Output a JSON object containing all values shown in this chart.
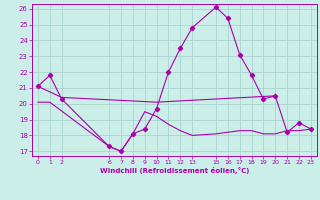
{
  "xlabel": "Windchill (Refroidissement éolien,°C)",
  "bg_color": "#cceee8",
  "grid_color": "#aad4ce",
  "line_color": "#aa00aa",
  "series1_x": [
    0,
    1,
    2,
    6,
    7,
    8,
    9,
    10,
    11,
    12,
    13,
    15,
    16,
    17,
    18,
    19,
    20,
    21,
    22,
    23
  ],
  "series1_y": [
    21.1,
    21.8,
    20.3,
    17.3,
    17.0,
    18.1,
    18.4,
    19.7,
    22.0,
    23.5,
    24.8,
    26.1,
    25.4,
    23.1,
    21.8,
    20.3,
    20.5,
    18.2,
    18.8,
    18.4
  ],
  "series2_x": [
    0,
    2,
    10,
    20
  ],
  "series2_y": [
    21.1,
    20.4,
    20.1,
    20.5
  ],
  "series3_x": [
    0,
    1,
    6,
    7,
    8,
    9,
    10,
    11,
    12,
    13,
    15,
    16,
    17,
    18,
    19,
    20,
    21,
    22,
    23
  ],
  "series3_y": [
    20.1,
    20.1,
    17.3,
    17.0,
    18.1,
    19.5,
    19.2,
    18.7,
    18.3,
    18.0,
    18.1,
    18.2,
    18.3,
    18.3,
    18.1,
    18.1,
    18.3,
    18.3,
    18.4
  ],
  "ylim": [
    16.7,
    26.3
  ],
  "xlim": [
    -0.5,
    23.5
  ],
  "yticks": [
    17,
    18,
    19,
    20,
    21,
    22,
    23,
    24,
    25,
    26
  ],
  "xticks": [
    0,
    1,
    2,
    6,
    7,
    8,
    9,
    10,
    11,
    12,
    13,
    15,
    16,
    17,
    18,
    19,
    20,
    21,
    22,
    23
  ]
}
